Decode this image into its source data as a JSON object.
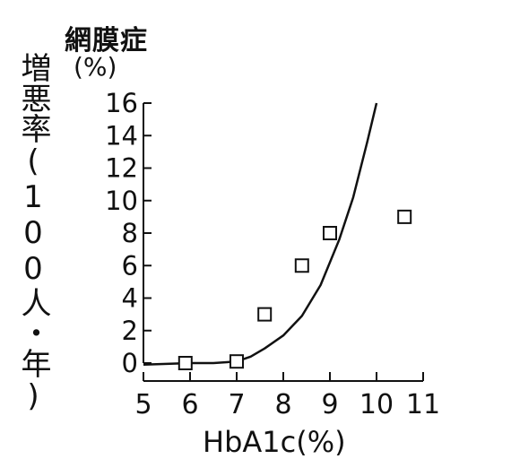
{
  "chart_data": {
    "type": "scatter",
    "title": "網膜症",
    "ylabel": "増悪率(100人・年)",
    "yunit": "(%)",
    "xlabel": "HbA1c(%)",
    "x_ticks": [
      5,
      6,
      7,
      8,
      9,
      10,
      11
    ],
    "y_ticks": [
      0,
      2,
      4,
      6,
      8,
      10,
      12,
      14,
      16
    ],
    "xlim": [
      5,
      11
    ],
    "ylim": [
      0,
      16
    ],
    "grid": false,
    "series": [
      {
        "kind": "points",
        "marker": "open-square",
        "points": [
          {
            "x": 5.9,
            "y": 0
          },
          {
            "x": 7.0,
            "y": 0.1
          },
          {
            "x": 7.6,
            "y": 3
          },
          {
            "x": 8.4,
            "y": 6
          },
          {
            "x": 9.0,
            "y": 8
          },
          {
            "x": 10.6,
            "y": 9
          }
        ]
      },
      {
        "kind": "curve",
        "points": [
          {
            "x": 5.0,
            "y": -0.1
          },
          {
            "x": 5.5,
            "y": -0.05
          },
          {
            "x": 6.0,
            "y": 0.0
          },
          {
            "x": 6.5,
            "y": 0.0
          },
          {
            "x": 7.0,
            "y": 0.1
          },
          {
            "x": 7.3,
            "y": 0.4
          },
          {
            "x": 7.6,
            "y": 0.9
          },
          {
            "x": 8.0,
            "y": 1.7
          },
          {
            "x": 8.4,
            "y": 2.9
          },
          {
            "x": 8.8,
            "y": 4.8
          },
          {
            "x": 9.2,
            "y": 7.6
          },
          {
            "x": 9.5,
            "y": 10.2
          },
          {
            "x": 9.8,
            "y": 13.6
          },
          {
            "x": 10.0,
            "y": 16.0
          }
        ]
      }
    ]
  }
}
